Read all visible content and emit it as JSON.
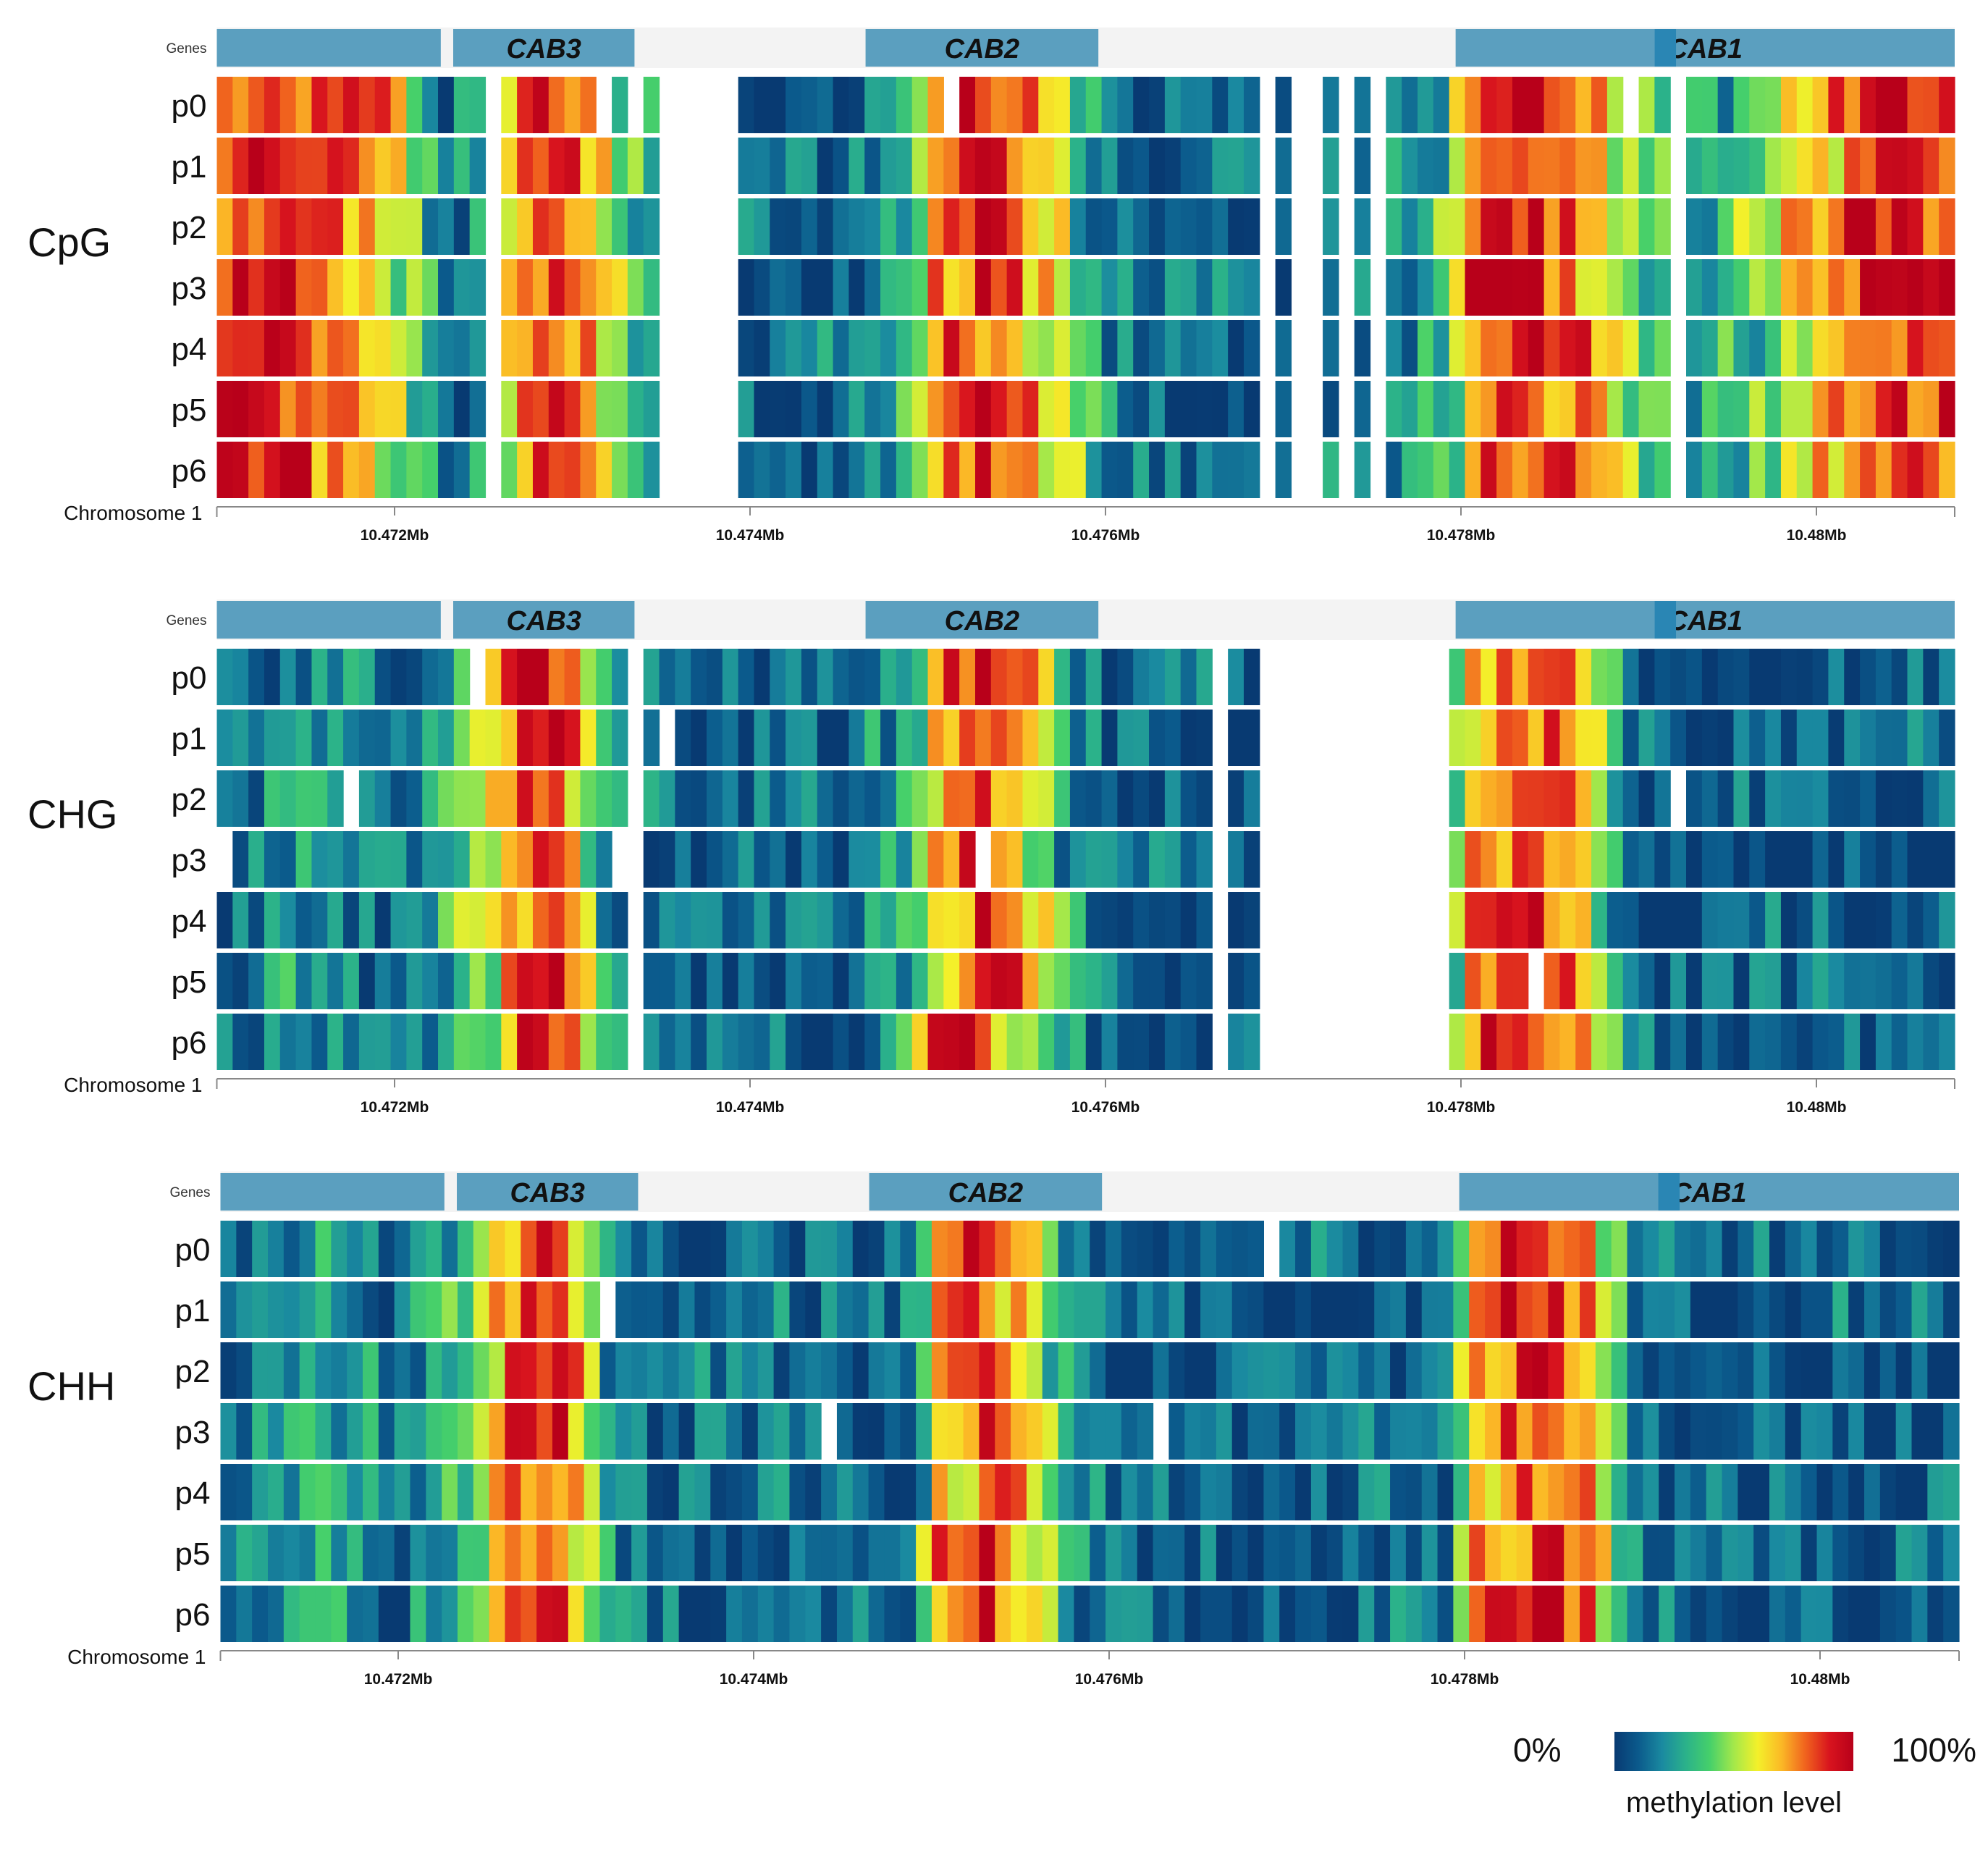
{
  "chart_data": [
    {
      "type": "heatmap",
      "context": "CpG",
      "genes_label": "Genes",
      "genes": [
        "CAB3",
        "CAB2",
        "CAB1"
      ],
      "rows": [
        "p0",
        "p1",
        "p2",
        "p3",
        "p4",
        "p5",
        "p6"
      ],
      "axis_label": "Chromosome 1",
      "ticks": [
        10.472,
        10.474,
        10.476,
        10.478,
        10.48
      ],
      "tick_labels": [
        "10.472Mb",
        "10.474Mb",
        "10.476Mb",
        "10.478Mb",
        "10.48Mb"
      ],
      "xlim_mb": [
        10.471,
        10.4809
      ],
      "gene_spans_mb": [
        [
          10.471,
          10.47226
        ],
        [
          10.47233,
          10.47335
        ],
        [
          10.47465,
          10.47596
        ],
        [
          10.47797,
          10.4809
        ]
      ],
      "gene_spans_labels": [
        "",
        "CAB3",
        "CAB2",
        "CAB1"
      ],
      "gene_accent_mb": [
        10.47909,
        10.47921
      ],
      "profile": [
        [
          10.471,
          0.93
        ],
        [
          10.4714,
          0.9
        ],
        [
          10.4718,
          0.82
        ],
        [
          10.47205,
          0.55
        ],
        [
          10.4723,
          0.12
        ],
        [
          10.4725,
          0.25
        ],
        [
          10.47265,
          0.6
        ],
        [
          10.4728,
          0.86
        ],
        [
          10.47305,
          0.75
        ],
        [
          10.4733,
          0.4
        ],
        [
          10.4735,
          0.2
        ],
        [
          10.474,
          0.1
        ],
        [
          10.4745,
          0.12
        ],
        [
          10.4749,
          0.28
        ],
        [
          10.47505,
          0.78
        ],
        [
          10.4753,
          0.9
        ],
        [
          10.47555,
          0.7
        ],
        [
          10.4758,
          0.5
        ],
        [
          10.47595,
          0.25
        ],
        [
          10.4762,
          0.12
        ],
        [
          10.477,
          0.1
        ],
        [
          10.4776,
          0.2
        ],
        [
          10.47795,
          0.35
        ],
        [
          10.47805,
          0.85
        ],
        [
          10.4784,
          0.95
        ],
        [
          10.4787,
          0.82
        ],
        [
          10.47895,
          0.5
        ],
        [
          10.4792,
          0.3
        ],
        [
          10.4796,
          0.35
        ],
        [
          10.4799,
          0.62
        ],
        [
          10.4803,
          0.88
        ],
        [
          10.4809,
          0.92
        ]
      ],
      "gaps_mb": [
        [
          10.47253,
          10.47263
        ],
        [
          10.47348,
          10.47356
        ],
        [
          10.47362,
          10.47394
        ],
        [
          10.47685,
          10.47695
        ],
        [
          10.47702,
          10.47718
        ],
        [
          10.4773,
          10.47737
        ],
        [
          10.4775,
          10.47757
        ],
        [
          10.47922,
          10.47929
        ]
      ],
      "value_range": [
        0,
        100
      ],
      "value_unit": "% methylation"
    },
    {
      "type": "heatmap",
      "context": "CHG",
      "genes_label": "Genes",
      "genes": [
        "CAB3",
        "CAB2",
        "CAB1"
      ],
      "rows": [
        "p0",
        "p1",
        "p2",
        "p3",
        "p4",
        "p5",
        "p6"
      ],
      "axis_label": "Chromosome 1",
      "ticks": [
        10.472,
        10.474,
        10.476,
        10.478,
        10.48
      ],
      "tick_labels": [
        "10.472Mb",
        "10.474Mb",
        "10.476Mb",
        "10.478Mb",
        "10.48Mb"
      ],
      "xlim_mb": [
        10.471,
        10.4809
      ],
      "gene_spans_mb": [
        [
          10.471,
          10.47226
        ],
        [
          10.47233,
          10.47335
        ],
        [
          10.47465,
          10.47596
        ],
        [
          10.47797,
          10.4809
        ]
      ],
      "gene_spans_labels": [
        "",
        "CAB3",
        "CAB2",
        "CAB1"
      ],
      "gene_accent_mb": [
        10.47909,
        10.47921
      ],
      "profile": [
        [
          10.471,
          0.1
        ],
        [
          10.4715,
          0.25
        ],
        [
          10.472,
          0.12
        ],
        [
          10.47248,
          0.45
        ],
        [
          10.4727,
          0.85
        ],
        [
          10.4729,
          0.9
        ],
        [
          10.47305,
          0.6
        ],
        [
          10.4732,
          0.25
        ],
        [
          10.4734,
          0.1
        ],
        [
          10.4745,
          0.1
        ],
        [
          10.4749,
          0.3
        ],
        [
          10.47505,
          0.75
        ],
        [
          10.4753,
          0.88
        ],
        [
          10.47555,
          0.65
        ],
        [
          10.4758,
          0.25
        ],
        [
          10.476,
          0.1
        ],
        [
          10.4779,
          0.12
        ],
        [
          10.47805,
          0.78
        ],
        [
          10.4784,
          0.92
        ],
        [
          10.4787,
          0.75
        ],
        [
          10.4789,
          0.25
        ],
        [
          10.4791,
          0.1
        ],
        [
          10.4809,
          0.1
        ]
      ],
      "gaps_mb": [
        [
          10.47335,
          10.47344
        ],
        [
          10.4766,
          10.47668
        ],
        [
          10.4769,
          10.47698
        ],
        [
          10.477,
          10.4779
        ]
      ],
      "value_range": [
        0,
        100
      ],
      "value_unit": "% methylation"
    },
    {
      "type": "heatmap",
      "context": "CHH",
      "genes_label": "Genes",
      "genes": [
        "CAB3",
        "CAB2",
        "CAB1"
      ],
      "rows": [
        "p0",
        "p1",
        "p2",
        "p3",
        "p4",
        "p5",
        "p6"
      ],
      "axis_label": "Chromosome 1",
      "ticks": [
        10.472,
        10.474,
        10.476,
        10.478,
        10.48
      ],
      "tick_labels": [
        "10.472Mb",
        "10.474Mb",
        "10.476Mb",
        "10.478Mb",
        "10.48Mb"
      ],
      "xlim_mb": [
        10.471,
        10.4809
      ],
      "gene_spans_mb": [
        [
          10.471,
          10.47226
        ],
        [
          10.47233,
          10.47335
        ],
        [
          10.47465,
          10.47596
        ],
        [
          10.47797,
          10.4809
        ]
      ],
      "gene_spans_labels": [
        "",
        "CAB3",
        "CAB2",
        "CAB1"
      ],
      "gene_accent_mb": [
        10.47909,
        10.47921
      ],
      "profile": [
        [
          10.471,
          0.12
        ],
        [
          10.4716,
          0.3
        ],
        [
          10.472,
          0.12
        ],
        [
          10.4725,
          0.45
        ],
        [
          10.4727,
          0.85
        ],
        [
          10.4729,
          0.9
        ],
        [
          10.47305,
          0.55
        ],
        [
          10.4732,
          0.2
        ],
        [
          10.4734,
          0.1
        ],
        [
          10.4749,
          0.15
        ],
        [
          10.47505,
          0.75
        ],
        [
          10.4753,
          0.85
        ],
        [
          10.47555,
          0.6
        ],
        [
          10.4758,
          0.2
        ],
        [
          10.476,
          0.1
        ],
        [
          10.4779,
          0.12
        ],
        [
          10.47805,
          0.72
        ],
        [
          10.4784,
          0.9
        ],
        [
          10.4787,
          0.72
        ],
        [
          10.4789,
          0.25
        ],
        [
          10.4791,
          0.1
        ],
        [
          10.4809,
          0.1
        ]
      ],
      "gaps_mb": [],
      "value_range": [
        0,
        100
      ],
      "value_unit": "% methylation"
    }
  ],
  "legend": {
    "min_label": "0%",
    "max_label": "100%",
    "title": "methylation level",
    "colors": [
      "#083a72",
      "#0b5a8c",
      "#1a8aa0",
      "#2bb28a",
      "#46d06a",
      "#a4e84a",
      "#f4f02a",
      "#fbb826",
      "#f0621e",
      "#d8141e",
      "#b8001a"
    ]
  }
}
